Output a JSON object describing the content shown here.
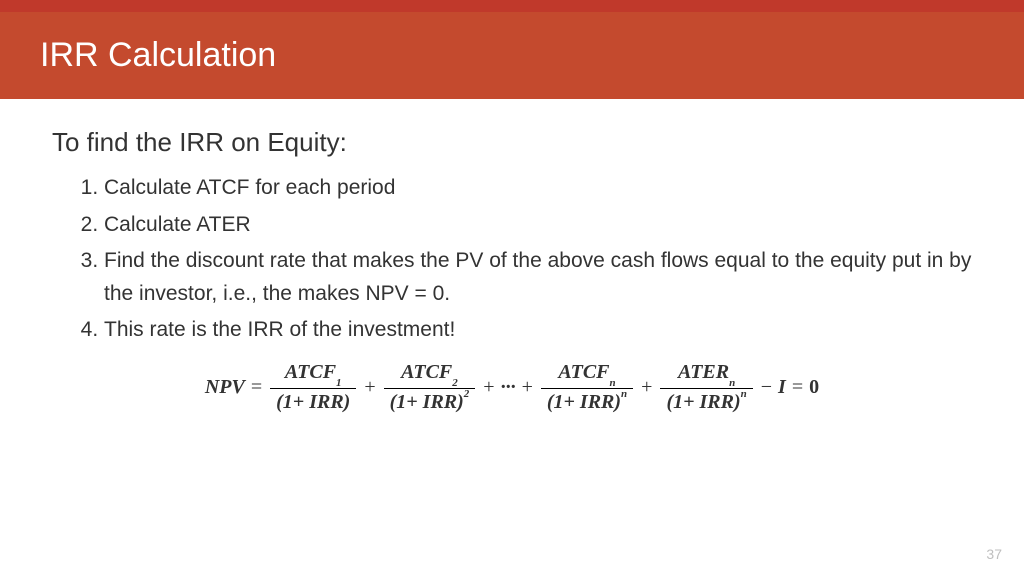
{
  "colors": {
    "accent_bar": "#c0392b",
    "title_bar": "#c44a2e",
    "title_text": "#ffffff",
    "body_text": "#333333",
    "page_num": "#bfbfbf",
    "background": "#ffffff"
  },
  "title": "IRR Calculation",
  "heading": "To find the IRR on Equity:",
  "steps": [
    "Calculate  ATCF for each period",
    "Calculate ATER",
    "Find the discount rate that makes the PV of the above cash flows equal to the equity put in by the investor, i.e., the makes NPV = 0.",
    "This rate is the IRR of the investment!"
  ],
  "formula": {
    "lhs": "NPV",
    "terms": [
      {
        "num_base": "ATCF",
        "num_sub": "1",
        "den_base": "(1+ IRR)",
        "den_sup": ""
      },
      {
        "num_base": "ATCF",
        "num_sub": "2",
        "den_base": "(1+ IRR)",
        "den_sup": "2"
      },
      {
        "ellipsis": "···"
      },
      {
        "num_base": "ATCF",
        "num_sub": "n",
        "den_base": "(1+ IRR)",
        "den_sup": "n"
      },
      {
        "num_base": "ATER",
        "num_sub": "n",
        "den_base": "(1+ IRR)",
        "den_sup": "n"
      }
    ],
    "tail_minus": "I",
    "rhs": "0"
  },
  "page_number": "37"
}
